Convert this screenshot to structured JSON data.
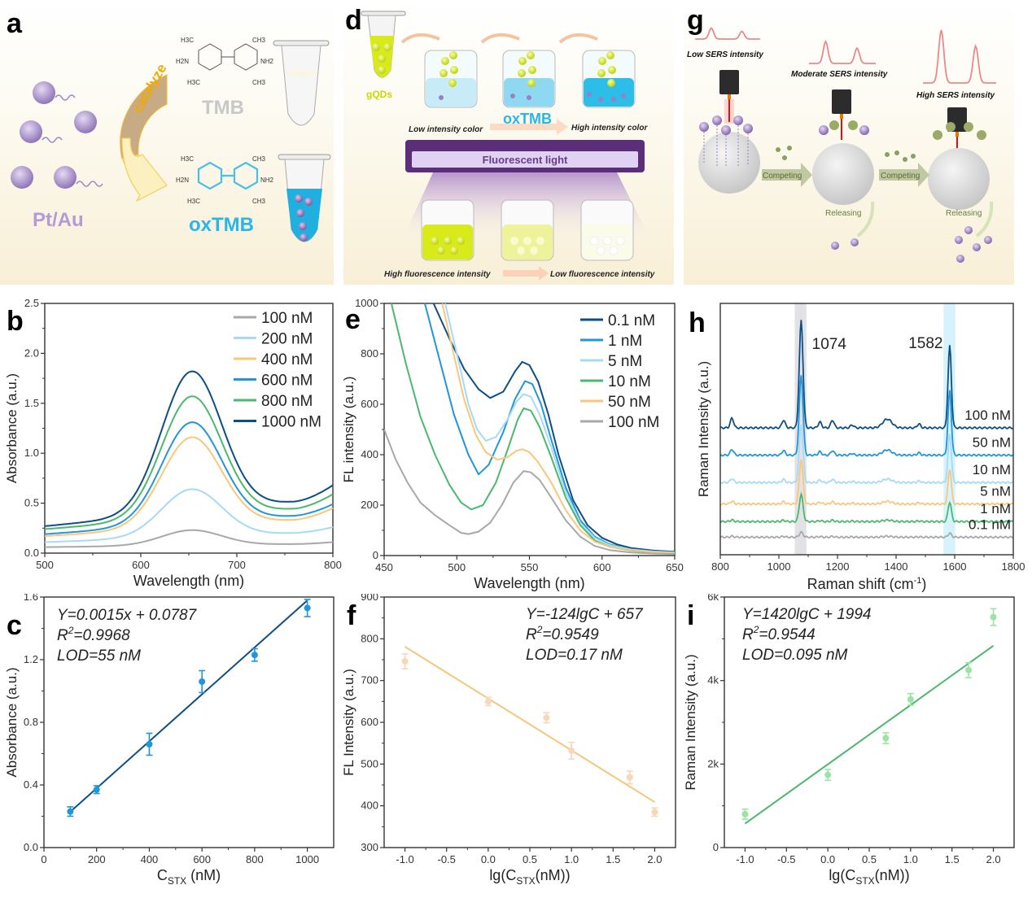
{
  "panels": {
    "a": {
      "label": "a",
      "nanoparticle_label": "Pt/Au",
      "arrow_label": "catalyze",
      "substrate_label": "TMB",
      "product_label": "oxTMB",
      "tmb_groups": [
        "H3C",
        "CH3",
        "H2N",
        "NH2",
        "H3C",
        "CH3"
      ],
      "oxtmb_groups": [
        "H3C",
        "CH3",
        "H2N",
        "NH2",
        "H3C",
        "CH3"
      ],
      "colors": {
        "nanoparticle": "#b49ad6",
        "product": "#29b6e8",
        "substrate": "#c8c8c8",
        "arrow": "#f5c842"
      }
    },
    "d": {
      "label": "d",
      "tube_label": "gQDs",
      "oxtmb_label": "oxTMB",
      "low_color_label": "Low intensity color",
      "high_color_label": "High intensity color",
      "light_label": "Fluorescent light",
      "high_fl_label": "High fluorescence intensity",
      "low_fl_label": "Low fluorescence intensity",
      "colors": {
        "gqd": "#d8ea1a",
        "light": "#6a3d8a",
        "oxtmb": "#29b6e8"
      }
    },
    "g": {
      "label": "g",
      "low_label": "Low  SERS intensity",
      "moderate_label": "Moderate SERS intensity",
      "high_label": "High  SERS intensity",
      "competing_label_1": "Competing",
      "competing_label_2": "Competing",
      "releasing_label_1": "Releasing",
      "releasing_label_2": "Releasing",
      "spectrum_peak_ratios": [
        0.3,
        0.6,
        1.0
      ],
      "colors": {
        "spectrum": "#e88a8a",
        "arrow": "#9aa878",
        "laser": "#e01010"
      }
    },
    "b": {
      "label": "b"
    },
    "e": {
      "label": "e"
    },
    "h": {
      "label": "h"
    },
    "c": {
      "label": "c"
    },
    "f": {
      "label": "f"
    },
    "i": {
      "label": "i"
    }
  },
  "chart_data": [
    {
      "id": "b",
      "type": "line",
      "xlabel": "Wavelength (nm)",
      "ylabel": "Absorbance (a.u.)",
      "xlim": [
        500,
        800
      ],
      "ylim": [
        0,
        2.5
      ],
      "xticks": [
        500,
        600,
        700,
        800
      ],
      "yticks": [
        0.0,
        0.5,
        1.0,
        1.5,
        2.0,
        2.5
      ],
      "ytick_labels": [
        "0.0",
        "0.5",
        "1.0",
        "1.5",
        "2.0",
        "2.5"
      ],
      "legend_position": "top-right",
      "peak_wavelength": 653,
      "trough_wavelength": 757,
      "series": [
        {
          "name": "100 nM",
          "color": "#a8a8a8",
          "start": 0.06,
          "peak": 0.23,
          "trough": 0.09,
          "end": 0.11
        },
        {
          "name": "200 nM",
          "color": "#a6daf5",
          "start": 0.11,
          "peak": 0.64,
          "trough": 0.2,
          "end": 0.26
        },
        {
          "name": "400 nM",
          "color": "#f9c77a",
          "start": 0.17,
          "peak": 1.16,
          "trough": 0.33,
          "end": 0.45
        },
        {
          "name": "600 nM",
          "color": "#2196d8",
          "start": 0.19,
          "peak": 1.31,
          "trough": 0.37,
          "end": 0.49
        },
        {
          "name": "800 nM",
          "color": "#4cb86e",
          "start": 0.24,
          "peak": 1.57,
          "trough": 0.44,
          "end": 0.59
        },
        {
          "name": "1000 nM",
          "color": "#0d4f84",
          "start": 0.27,
          "peak": 1.82,
          "trough": 0.51,
          "end": 0.68
        }
      ]
    },
    {
      "id": "e",
      "type": "line",
      "xlabel": "Wavelength (nm)",
      "ylabel": "FL intensity (a.u.)",
      "xlim": [
        450,
        650
      ],
      "ylim": [
        0,
        1000
      ],
      "xticks": [
        450,
        500,
        550,
        600,
        650
      ],
      "yticks": [
        0,
        200,
        400,
        600,
        800,
        1000
      ],
      "legend_position": "top-right",
      "series": [
        {
          "name": "0.1 nM",
          "color": "#0d4f84",
          "points": [
            [
              484,
              1000
            ],
            [
              495,
              860
            ],
            [
              505,
              740
            ],
            [
              515,
              660
            ],
            [
              523,
              625
            ],
            [
              532,
              650
            ],
            [
              540,
              730
            ],
            [
              545,
              768
            ],
            [
              550,
              755
            ],
            [
              556,
              690
            ],
            [
              563,
              560
            ],
            [
              570,
              400
            ],
            [
              580,
              220
            ],
            [
              590,
              120
            ],
            [
              600,
              70
            ],
            [
              610,
              45
            ],
            [
              620,
              30
            ],
            [
              635,
              20
            ],
            [
              650,
              15
            ]
          ]
        },
        {
          "name": "1 nM",
          "color": "#2196d8",
          "points": [
            [
              478,
              1000
            ],
            [
              488,
              780
            ],
            [
              498,
              560
            ],
            [
              508,
              400
            ],
            [
              515,
              322
            ],
            [
              522,
              360
            ],
            [
              532,
              490
            ],
            [
              540,
              620
            ],
            [
              547,
              692
            ],
            [
              552,
              680
            ],
            [
              558,
              600
            ],
            [
              565,
              460
            ],
            [
              575,
              270
            ],
            [
              585,
              140
            ],
            [
              595,
              75
            ],
            [
              605,
              45
            ],
            [
              620,
              25
            ],
            [
              635,
              17
            ],
            [
              650,
              13
            ]
          ]
        },
        {
          "name": "5 nM",
          "color": "#a6daf5",
          "points": [
            [
              492,
              1000
            ],
            [
              500,
              800
            ],
            [
              508,
              600
            ],
            [
              514,
              500
            ],
            [
              520,
              455
            ],
            [
              527,
              470
            ],
            [
              535,
              540
            ],
            [
              541,
              610
            ],
            [
              546,
              640
            ],
            [
              551,
              630
            ],
            [
              557,
              560
            ],
            [
              565,
              430
            ],
            [
              575,
              250
            ],
            [
              585,
              130
            ],
            [
              595,
              70
            ],
            [
              605,
              42
            ],
            [
              620,
              24
            ],
            [
              635,
              16
            ],
            [
              650,
              12
            ]
          ]
        },
        {
          "name": "10 nM",
          "color": "#4cb86e",
          "points": [
            [
              455,
              1000
            ],
            [
              465,
              760
            ],
            [
              475,
              550
            ],
            [
              485,
              400
            ],
            [
              495,
              280
            ],
            [
              503,
              210
            ],
            [
              510,
              183
            ],
            [
              518,
              200
            ],
            [
              527,
              290
            ],
            [
              535,
              420
            ],
            [
              542,
              540
            ],
            [
              546,
              584
            ],
            [
              551,
              575
            ],
            [
              557,
              510
            ],
            [
              565,
              390
            ],
            [
              575,
              230
            ],
            [
              585,
              120
            ],
            [
              595,
              60
            ],
            [
              605,
              35
            ],
            [
              620,
              20
            ],
            [
              635,
              13
            ],
            [
              650,
              10
            ]
          ]
        },
        {
          "name": "50 nM",
          "color": "#f9c77a",
          "points": [
            [
              490,
              1000
            ],
            [
              497,
              820
            ],
            [
              505,
              620
            ],
            [
              513,
              480
            ],
            [
              520,
              410
            ],
            [
              528,
              380
            ],
            [
              535,
              390
            ],
            [
              541,
              415
            ],
            [
              545,
              422
            ],
            [
              550,
              410
            ],
            [
              556,
              370
            ],
            [
              565,
              290
            ],
            [
              575,
              180
            ],
            [
              585,
              100
            ],
            [
              595,
              55
            ],
            [
              605,
              35
            ],
            [
              620,
              22
            ],
            [
              635,
              14
            ],
            [
              650,
              10
            ]
          ]
        },
        {
          "name": "100 nM",
          "color": "#a8a8a8",
          "points": [
            [
              450,
              500
            ],
            [
              458,
              380
            ],
            [
              466,
              290
            ],
            [
              475,
              210
            ],
            [
              485,
              160
            ],
            [
              495,
              120
            ],
            [
              503,
              90
            ],
            [
              508,
              85
            ],
            [
              515,
              95
            ],
            [
              523,
              130
            ],
            [
              531,
              200
            ],
            [
              539,
              290
            ],
            [
              546,
              335
            ],
            [
              551,
              330
            ],
            [
              557,
              300
            ],
            [
              565,
              230
            ],
            [
              575,
              140
            ],
            [
              585,
              75
            ],
            [
              595,
              38
            ],
            [
              605,
              22
            ],
            [
              620,
              12
            ],
            [
              635,
              8
            ],
            [
              650,
              6
            ]
          ]
        }
      ]
    },
    {
      "id": "h",
      "type": "line",
      "xlabel": "Raman shift (cm-1)",
      "xlabel_main": "Raman shift (cm",
      "xlabel_sup": "-1",
      "xlabel_end": ")",
      "ylabel": "Raman Intensity (a.u.)",
      "xlim": [
        800,
        1800
      ],
      "xticks": [
        800,
        1000,
        1200,
        1400,
        1600,
        1800
      ],
      "annotations": [
        "1074",
        "1582"
      ],
      "highlight_bands": [
        {
          "center": 1074,
          "color": "#e2e2e6"
        },
        {
          "center": 1582,
          "color": "#d6f2fc"
        }
      ],
      "series": [
        {
          "name": "100 nM",
          "color": "#0d4f84",
          "baseline": 6.0,
          "peak1074": 5.5,
          "peak1582": 4.2,
          "minor": 0.5
        },
        {
          "name": "50 nM",
          "color": "#2196d8",
          "baseline": 4.6,
          "peak1074": 4.1,
          "peak1582": 3.3,
          "minor": 0.3
        },
        {
          "name": "10 nM",
          "color": "#a6daf5",
          "baseline": 3.2,
          "peak1074": 3.0,
          "peak1582": 2.5,
          "minor": 0.2
        },
        {
          "name": "5 nM",
          "color": "#f9c77a",
          "baseline": 2.1,
          "peak1074": 2.3,
          "peak1582": 1.8,
          "minor": 0.15
        },
        {
          "name": "1 nM",
          "color": "#4cb86e",
          "baseline": 1.2,
          "peak1074": 1.4,
          "peak1582": 1.0,
          "minor": 0.08
        },
        {
          "name": "0.1 nM",
          "color": "#a8a8a8",
          "baseline": 0.4,
          "peak1074": 0.25,
          "peak1582": 0.2,
          "minor": 0.05
        }
      ]
    },
    {
      "id": "c",
      "type": "scatter",
      "xlabel_main": "C",
      "xlabel_sub": "STX",
      "xlabel_end": " (nM)",
      "ylabel": "Absorbance (a.u.)",
      "xlim": [
        0,
        1100
      ],
      "ylim": [
        0,
        1.6
      ],
      "xticks": [
        0,
        200,
        400,
        600,
        800,
        1000
      ],
      "yticks": [
        0.0,
        0.4,
        0.8,
        1.2,
        1.6
      ],
      "ytick_labels": [
        "0.0",
        "0.4",
        "0.8",
        "1.2",
        "1.6"
      ],
      "equation": "Y=0.0015x + 0.0787",
      "r2_label": "R",
      "r2_value": "=0.9968",
      "lod": "LOD=55 nM",
      "fit": {
        "slope": 0.0015,
        "intercept": 0.0787,
        "color": "#0d4f84"
      },
      "point_color": "#2196d8",
      "x": [
        100,
        200,
        400,
        600,
        800,
        1000
      ],
      "y": [
        0.23,
        0.37,
        0.66,
        1.06,
        1.23,
        1.53
      ],
      "err": [
        0.03,
        0.025,
        0.07,
        0.07,
        0.04,
        0.055
      ]
    },
    {
      "id": "f",
      "type": "scatter",
      "xlabel_main": "lg(C",
      "xlabel_sub": "STX",
      "xlabel_end": "(nM))",
      "ylabel": "FL Intensity (a.u.)",
      "xlim": [
        -1.25,
        2.25
      ],
      "ylim": [
        300,
        900
      ],
      "xticks": [
        -1.0,
        -0.5,
        0.0,
        0.5,
        1.0,
        1.5,
        2.0
      ],
      "xtick_labels": [
        "-1.0",
        "-0.5",
        "0.0",
        "0.5",
        "1.0",
        "1.5",
        "2.0"
      ],
      "yticks": [
        300,
        400,
        500,
        600,
        700,
        800,
        900
      ],
      "equation": "Y=-124lgC + 657",
      "r2_label": "R",
      "r2_value": "=0.9549",
      "lod": "LOD=0.17 nM",
      "fit": {
        "slope": -124,
        "intercept": 657,
        "color": "#f6c77a"
      },
      "point_color": "#f8d6b8",
      "x": [
        -1.0,
        0.0,
        0.7,
        1.0,
        1.7,
        2.0
      ],
      "y": [
        746,
        650,
        611,
        532,
        468,
        385
      ],
      "err": [
        18,
        10,
        12,
        20,
        15,
        10
      ]
    },
    {
      "id": "i",
      "type": "scatter",
      "xlabel_main": "lg(C",
      "xlabel_sub": "STX",
      "xlabel_end": "(nM))",
      "ylabel": "Raman Intensity (a.u.)",
      "xlim": [
        -1.25,
        2.25
      ],
      "ylim": [
        0,
        6000
      ],
      "xticks": [
        -1.0,
        -0.5,
        0.0,
        0.5,
        1.0,
        1.5,
        2.0
      ],
      "xtick_labels": [
        "-1.0",
        "-0.5",
        "0.0",
        "0.5",
        "1.0",
        "1.5",
        "2.0"
      ],
      "yticks": [
        0,
        2000,
        4000,
        6000
      ],
      "ytick_labels": [
        "0",
        "2k",
        "4k",
        "6k"
      ],
      "equation": "Y=1420lgC + 1994",
      "r2_label": "R",
      "r2_value": "=0.9544",
      "lod": "LOD=0.095 nM",
      "fit": {
        "slope": 1420,
        "intercept": 1994,
        "color": "#4cb86e"
      },
      "point_color": "#9ee3a6",
      "x": [
        -1.0,
        0.0,
        0.7,
        1.0,
        1.7,
        2.0
      ],
      "y": [
        800,
        1740,
        2620,
        3550,
        4250,
        5520
      ],
      "err": [
        120,
        130,
        130,
        140,
        180,
        200
      ]
    }
  ]
}
